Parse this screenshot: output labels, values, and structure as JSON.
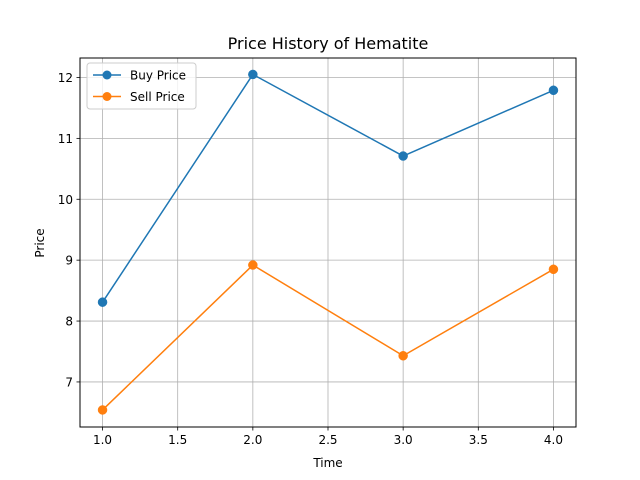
{
  "chart_data": {
    "type": "line",
    "title": "Price History of Hematite",
    "xlabel": "Time",
    "ylabel": "Price",
    "x": [
      1.0,
      2.0,
      3.0,
      4.0
    ],
    "xlim": [
      0.85,
      4.15
    ],
    "ylim": [
      6.26,
      12.32
    ],
    "xticks": [
      1.0,
      1.5,
      2.0,
      2.5,
      3.0,
      3.5,
      4.0
    ],
    "xtick_labels": [
      "1.0",
      "1.5",
      "2.0",
      "2.5",
      "3.0",
      "3.5",
      "4.0"
    ],
    "yticks": [
      7,
      8,
      9,
      10,
      11,
      12
    ],
    "ytick_labels": [
      "7",
      "8",
      "9",
      "10",
      "11",
      "12"
    ],
    "grid": true,
    "legend_position": "upper-left",
    "series": [
      {
        "name": "Buy Price",
        "color": "#1f77b4",
        "marker": "circle",
        "values": [
          8.31,
          12.05,
          10.71,
          11.79
        ]
      },
      {
        "name": "Sell Price",
        "color": "#ff7f0e",
        "marker": "circle",
        "values": [
          6.54,
          8.92,
          7.43,
          8.85
        ]
      }
    ]
  }
}
